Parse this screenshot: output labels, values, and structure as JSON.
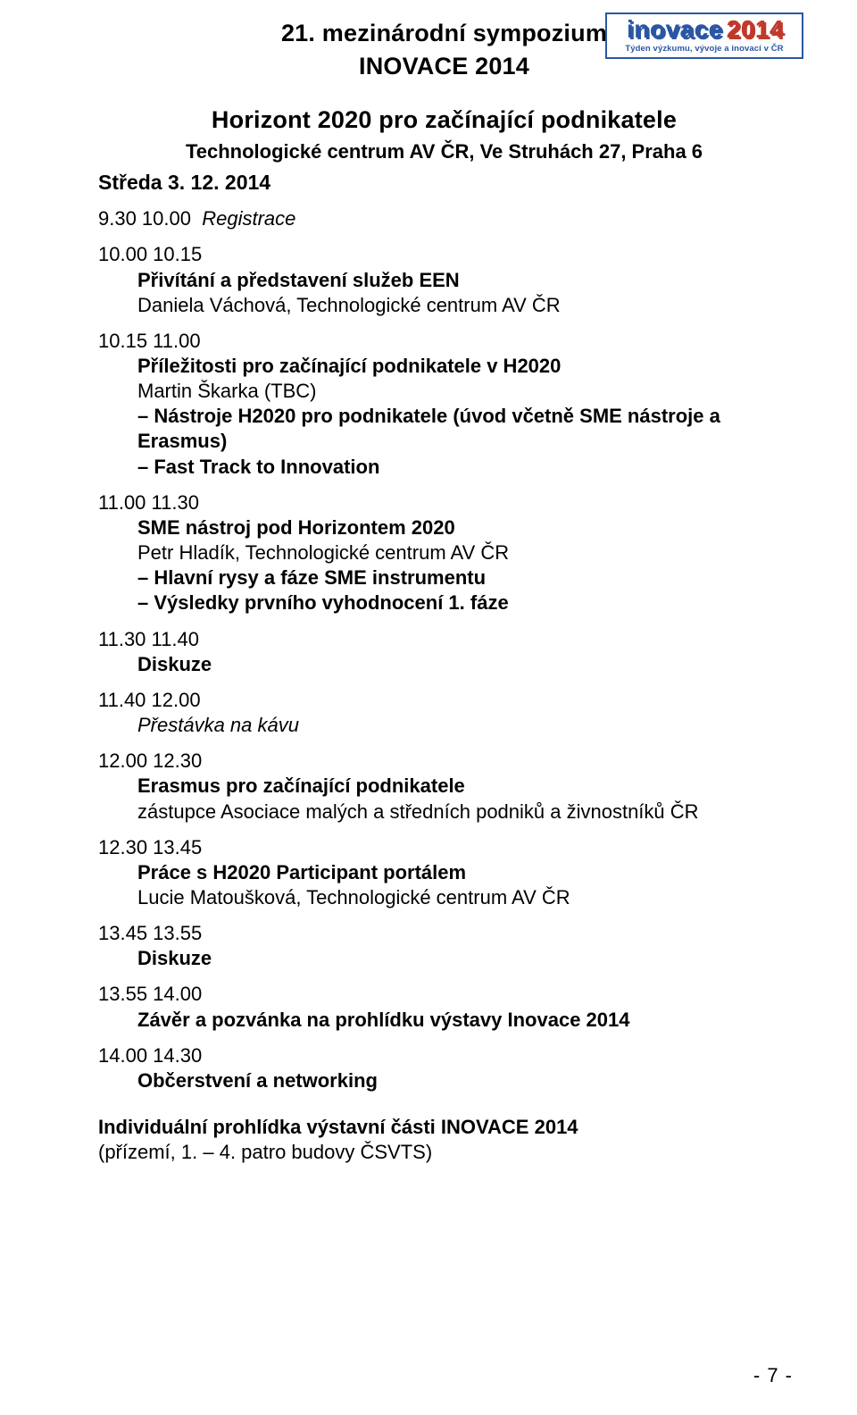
{
  "header": {
    "line1": "21. mezinárodní sympozium",
    "line2": "INOVACE 2014"
  },
  "logo": {
    "brand": "inovace",
    "year": "2014",
    "subtitle": "Týden výzkumu, vývoje a inovací v ČR"
  },
  "title": "Horizont 2020 pro začínající podnikatele",
  "subtitle": "Technologické centrum AV ČR, Ve Struhách 27, Praha 6",
  "date": "Středa 3. 12. 2014",
  "schedule": {
    "i0": {
      "time": "9.30 10.00",
      "label": "Registrace"
    },
    "i1": {
      "time": "10.00 10.15",
      "title": "Přivítání a představení služeb EEN",
      "speaker": "Daniela Váchová, Technologické centrum AV ČR"
    },
    "i2": {
      "time": "10.15 11.00",
      "title": "Příležitosti pro začínající podnikatele v H2020",
      "speaker": "Martin Škarka (TBC)",
      "bullet1": "– Nástroje H2020 pro podnikatele (úvod včetně SME nástroje a Erasmus)",
      "bullet2": "– Fast Track to Innovation"
    },
    "i3": {
      "time": "11.00 11.30",
      "title": "SME nástroj pod Horizontem 2020",
      "speaker": "Petr Hladík, Technologické centrum AV ČR",
      "bullet1": "– Hlavní rysy a fáze SME instrumentu",
      "bullet2": "– Výsledky prvního vyhodnocení 1. fáze"
    },
    "i4": {
      "time": "11.30 11.40",
      "title": "Diskuze"
    },
    "i5": {
      "time": "11.40 12.00",
      "label": "Přestávka na kávu"
    },
    "i6": {
      "time": "12.00 12.30",
      "title": "Erasmus pro začínající podnikatele",
      "speaker": "zástupce Asociace malých a středních podniků a živnostníků ČR"
    },
    "i7": {
      "time": "12.30 13.45",
      "title": "Práce s H2020 Participant portálem",
      "speaker": "Lucie Matoušková, Technologické centrum AV ČR"
    },
    "i8": {
      "time": "13.45 13.55",
      "title": "Diskuze"
    },
    "i9": {
      "time": "13.55 14.00",
      "title": "Závěr a pozvánka na prohlídku výstavy Inovace 2014"
    },
    "i10": {
      "time": "14.00 14.30",
      "title": "Občerstvení a networking"
    }
  },
  "footer": {
    "line1": "Individuální prohlídka výstavní části INOVACE 2014",
    "line2": "(přízemí, 1. – 4. patro budovy ČSVTS)"
  },
  "page_number": "- 7 -"
}
